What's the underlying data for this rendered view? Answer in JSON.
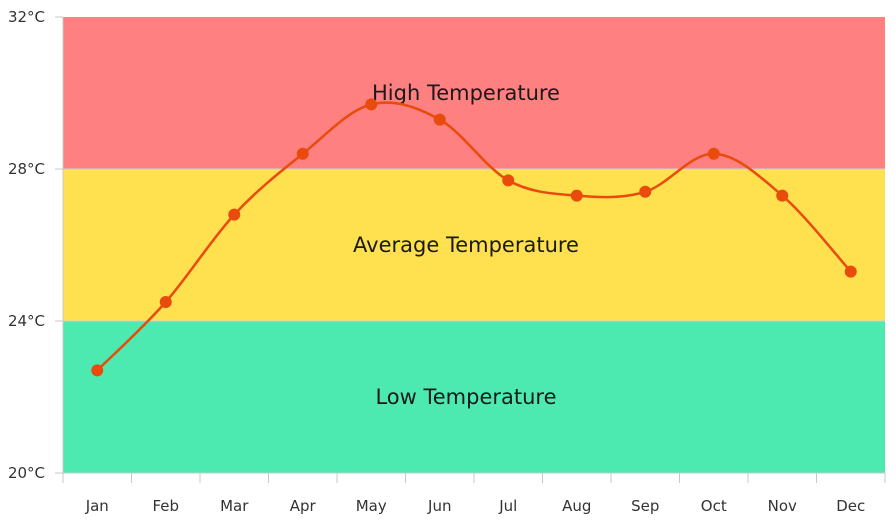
{
  "chart_data": {
    "type": "line",
    "title": "",
    "xlabel": "",
    "ylabel": "",
    "categories": [
      "Jan",
      "Feb",
      "Mar",
      "Apr",
      "May",
      "Jun",
      "Jul",
      "Aug",
      "Sep",
      "Oct",
      "Nov",
      "Dec"
    ],
    "series": [
      {
        "values": [
          22.7,
          24.5,
          26.8,
          28.4,
          29.7,
          29.3,
          27.7,
          27.3,
          27.4,
          28.4,
          27.3,
          25.3
        ],
        "color": "#e94b0c"
      }
    ],
    "ylim": [
      20,
      32
    ],
    "y_ticks": [
      {
        "value": 20,
        "label": "20°C"
      },
      {
        "value": 24,
        "label": "24°C"
      },
      {
        "value": 28,
        "label": "28°C"
      },
      {
        "value": 32,
        "label": "32°C"
      }
    ],
    "bands": [
      {
        "from": 28,
        "to": 32,
        "label": "High Temperature",
        "color": "#ff8080"
      },
      {
        "from": 24,
        "to": 28,
        "label": "Average Temperature",
        "color": "#ffe04f"
      },
      {
        "from": 20,
        "to": 24,
        "label": "Low Temperature",
        "color": "#4ceab0"
      }
    ],
    "grid": false,
    "legend": "none"
  }
}
